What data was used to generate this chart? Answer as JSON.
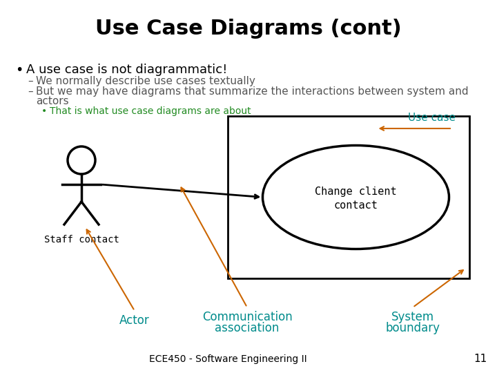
{
  "title": "Use Case Diagrams (cont)",
  "title_fontsize": 22,
  "bg_color": "#ffffff",
  "bullet_text": "A use case is not diagrammatic!",
  "bullet_fontsize": 13,
  "sub1": "We normally describe use cases textually",
  "sub2_a": "But we may have diagrams that summarize the interactions between system and",
  "sub2_b": "actors",
  "sub_fontsize": 11,
  "subsub": "That is what use case diagrams are about",
  "subsub_color": "#228B22",
  "subsub_fontsize": 10,
  "use_case_label": "Use case",
  "use_case_color": "#008B8B",
  "staff_label": "Staff contact",
  "staff_fontsize": 10,
  "ellipse_label_1": "Change client",
  "ellipse_label_2": "contact",
  "ellipse_fontsize": 11,
  "actor_label": "Actor",
  "actor_color": "#008B8B",
  "actor_fontsize": 12,
  "comm_label_1": "Communication",
  "comm_label_2": "association",
  "comm_color": "#008B8B",
  "comm_fontsize": 12,
  "sys_label_1": "System",
  "sys_label_2": "boundary",
  "sys_color": "#008B8B",
  "sys_fontsize": 12,
  "footer": "ECE450 - Software Engineering II",
  "footer_fontsize": 10,
  "page_num": "11",
  "page_num_fontsize": 11,
  "arrow_color": "#CC6600",
  "line_color": "#000000",
  "rect_color": "#000000",
  "stick_color": "#000000",
  "gray_text": "#555555"
}
